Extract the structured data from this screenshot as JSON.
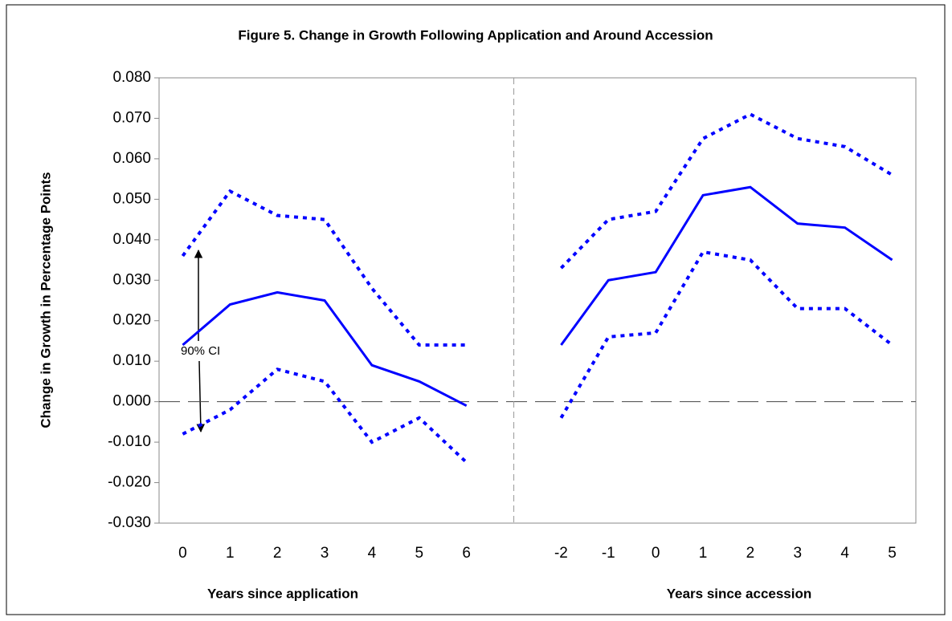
{
  "chart_data": {
    "type": "line",
    "title": "Figure 5. Change in Growth Following Application and Around Accession",
    "y_label": "Change in Growth in Percentage Points",
    "x_labels": [
      "Years since application",
      "Years since accession"
    ],
    "annotation": "90% CI",
    "categories": [
      "0",
      "1",
      "2",
      "3",
      "4",
      "5",
      "6",
      null,
      "-2",
      "-1",
      "0",
      "1",
      "2",
      "3",
      "4",
      "5"
    ],
    "series": [
      {
        "color": "#0000ff",
        "dash": "solid",
        "values": [
          0.014,
          0.024,
          0.027,
          0.025,
          0.009,
          0.005,
          -0.001,
          null,
          0.014,
          0.03,
          0.032,
          0.051,
          0.053,
          0.044,
          0.043,
          0.035
        ]
      },
      {
        "color": "#0000ff",
        "dash": "dotted",
        "values": [
          0.036,
          0.052,
          0.046,
          0.045,
          0.028,
          0.014,
          0.014,
          null,
          0.033,
          0.045,
          0.047,
          0.065,
          0.071,
          0.065,
          0.063,
          0.056
        ]
      },
      {
        "color": "#0000ff",
        "dash": "dotted",
        "values": [
          -0.008,
          -0.002,
          0.008,
          0.005,
          -0.01,
          -0.004,
          -0.015,
          null,
          -0.004,
          0.016,
          0.017,
          0.037,
          0.035,
          0.023,
          0.023,
          0.014
        ]
      }
    ],
    "ylim": [
      -0.03,
      0.08
    ],
    "yticks": [
      {
        "value": -0.03,
        "label": "-0.030"
      },
      {
        "value": -0.02,
        "label": "-0.020"
      },
      {
        "value": -0.01,
        "label": "-0.010"
      },
      {
        "value": 0,
        "label": "0.000"
      },
      {
        "value": 0.01,
        "label": "0.010"
      },
      {
        "value": 0.02,
        "label": "0.020"
      },
      {
        "value": 0.03,
        "label": "0.030"
      },
      {
        "value": 0.04,
        "label": "0.040"
      },
      {
        "value": 0.05,
        "label": "0.050"
      },
      {
        "value": 0.06,
        "label": "0.060"
      },
      {
        "value": 0.07,
        "label": "0.070"
      },
      {
        "value": 0.08,
        "label": "0.080"
      }
    ],
    "grid": false,
    "zero_line": true
  }
}
